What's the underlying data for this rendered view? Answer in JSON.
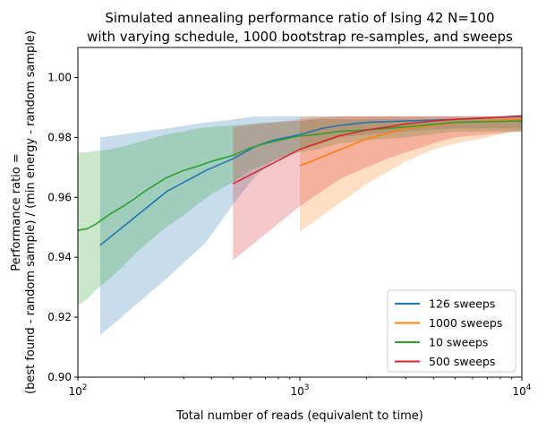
{
  "chart_data": {
    "type": "line",
    "title_line1": "Simulated annealing performance ratio of Ising 42 N=100",
    "title_line2": "with varying schedule, 1000 bootstrap re-samples, and sweeps",
    "xlabel": "Total number of reads (equivalent to time)",
    "ylabel_line1": "Performance ratio =",
    "ylabel_line2": "(best found - random sample) / (min energy - random sample)",
    "xscale": "log",
    "xlim": [
      100,
      10000
    ],
    "ylim": [
      0.9,
      1.01
    ],
    "yticks": [
      0.9,
      0.92,
      0.94,
      0.96,
      0.98,
      1.0
    ],
    "ytick_labels": [
      "0.90",
      "0.92",
      "0.94",
      "0.96",
      "0.98",
      "1.00"
    ],
    "xticks": [
      100,
      1000,
      10000
    ],
    "xtick_labels": [
      {
        "base": "10",
        "exp": "2"
      },
      {
        "base": "10",
        "exp": "3"
      },
      {
        "base": "10",
        "exp": "4"
      }
    ],
    "legend_position": "lower-right",
    "series": [
      {
        "name": "126 sweeps",
        "color": "#1f77b4",
        "x": [
          126,
          252,
          378,
          504,
          630,
          756,
          1008,
          1260,
          1512,
          2016,
          3024,
          5040,
          10000
        ],
        "y": [
          0.944,
          0.962,
          0.969,
          0.973,
          0.977,
          0.979,
          0.981,
          0.983,
          0.984,
          0.985,
          0.9855,
          0.986,
          0.987
        ],
        "lower": [
          0.914,
          0.933,
          0.945,
          0.958,
          0.967,
          0.972,
          0.976,
          0.978,
          0.98,
          0.981,
          0.982,
          0.983,
          0.983
        ],
        "upper": [
          0.98,
          0.983,
          0.985,
          0.986,
          0.987,
          0.987,
          0.987,
          0.987,
          0.987,
          0.987,
          0.987,
          0.987,
          0.987
        ]
      },
      {
        "name": "1000 sweeps",
        "color": "#ff7f0e",
        "x": [
          1000,
          2000,
          3000,
          4000,
          5000,
          6000,
          7000,
          8000,
          9000,
          10000
        ],
        "y": [
          0.9705,
          0.9795,
          0.983,
          0.984,
          0.9848,
          0.9852,
          0.9856,
          0.9858,
          0.986,
          0.9862
        ],
        "lower": [
          0.9485,
          0.9645,
          0.972,
          0.976,
          0.978,
          0.979,
          0.98,
          0.981,
          0.982,
          0.982
        ],
        "upper": [
          0.987,
          0.987,
          0.987,
          0.987,
          0.987,
          0.987,
          0.987,
          0.987,
          0.987,
          0.987
        ]
      },
      {
        "name": "10 sweeps",
        "color": "#2ca02c",
        "x": [
          100,
          110,
          120,
          140,
          160,
          180,
          200,
          250,
          300,
          350,
          400,
          500,
          600,
          700,
          800,
          1000,
          1200,
          1500,
          2000,
          3000,
          5000,
          10000
        ],
        "y": [
          0.949,
          0.9495,
          0.951,
          0.9545,
          0.957,
          0.9595,
          0.962,
          0.9665,
          0.969,
          0.9705,
          0.972,
          0.974,
          0.9765,
          0.978,
          0.979,
          0.9805,
          0.981,
          0.982,
          0.9825,
          0.9835,
          0.985,
          0.9855
        ],
        "lower": [
          0.924,
          0.926,
          0.929,
          0.933,
          0.937,
          0.941,
          0.944,
          0.95,
          0.954,
          0.958,
          0.961,
          0.965,
          0.969,
          0.971,
          0.973,
          0.975,
          0.976,
          0.978,
          0.979,
          0.98,
          0.982,
          0.982
        ],
        "upper": [
          0.975,
          0.975,
          0.9755,
          0.976,
          0.977,
          0.978,
          0.979,
          0.981,
          0.982,
          0.983,
          0.9835,
          0.984,
          0.9845,
          0.985,
          0.985,
          0.9855,
          0.986,
          0.986,
          0.986,
          0.986,
          0.986,
          0.986
        ]
      },
      {
        "name": "500 sweeps",
        "color": "#d62728",
        "x": [
          500,
          1000,
          1500,
          2000,
          2500,
          3000,
          4000,
          5000,
          7000,
          10000
        ],
        "y": [
          0.9645,
          0.976,
          0.9805,
          0.9825,
          0.9835,
          0.9845,
          0.9855,
          0.986,
          0.9865,
          0.9872
        ],
        "lower": [
          0.939,
          0.957,
          0.966,
          0.97,
          0.973,
          0.975,
          0.978,
          0.98,
          0.981,
          0.982
        ],
        "upper": [
          0.9835,
          0.986,
          0.987,
          0.987,
          0.987,
          0.987,
          0.987,
          0.987,
          0.987,
          0.987
        ]
      }
    ]
  }
}
